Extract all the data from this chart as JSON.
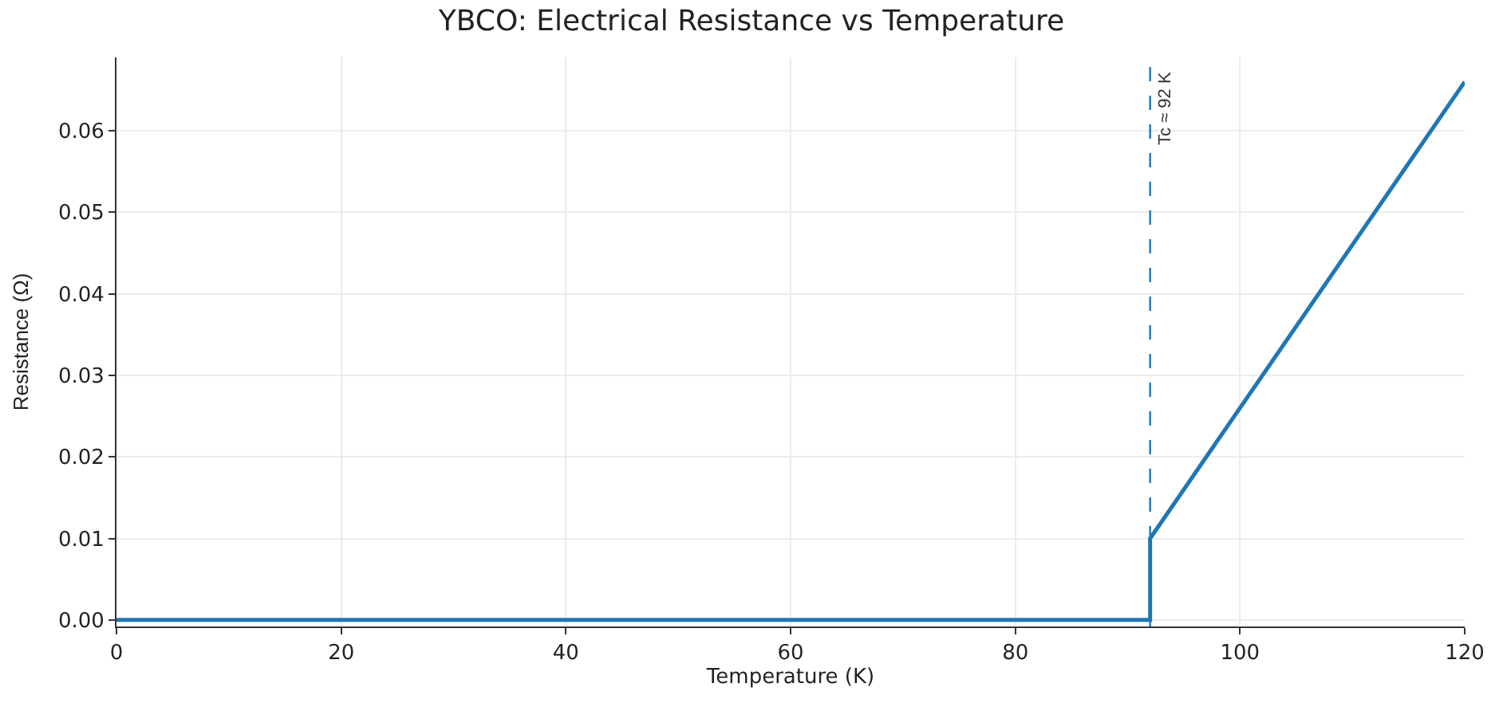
{
  "chart_data": {
    "type": "line",
    "title": "YBCO: Electrical Resistance vs Temperature",
    "xlabel": "Temperature (K)",
    "ylabel": "Resistance (Ω)",
    "x": [
      0,
      92,
      92,
      120
    ],
    "series": [
      {
        "color": "#1f77b4",
        "values": [
          0,
          0,
          0.01,
          0.066
        ]
      }
    ],
    "xlim": [
      0,
      120
    ],
    "xticks": [
      0,
      20,
      40,
      60,
      80,
      100,
      120
    ],
    "ylim": [
      -0.0008,
      0.069
    ],
    "yticks": [
      {
        "value": 0,
        "label": "0.00"
      },
      {
        "value": 0.01,
        "label": "0.01"
      },
      {
        "value": 0.02,
        "label": "0.02"
      },
      {
        "value": 0.03,
        "label": "0.03"
      },
      {
        "value": 0.04,
        "label": "0.04"
      },
      {
        "value": 0.05,
        "label": "0.05"
      },
      {
        "value": 0.06,
        "label": "0.06"
      }
    ],
    "ref_lines": [
      {
        "axis": "x",
        "value": 92,
        "label": "Tc ≈ 92 K",
        "color": "#1f77b4",
        "line_style": "dashed"
      }
    ],
    "grid": true
  }
}
